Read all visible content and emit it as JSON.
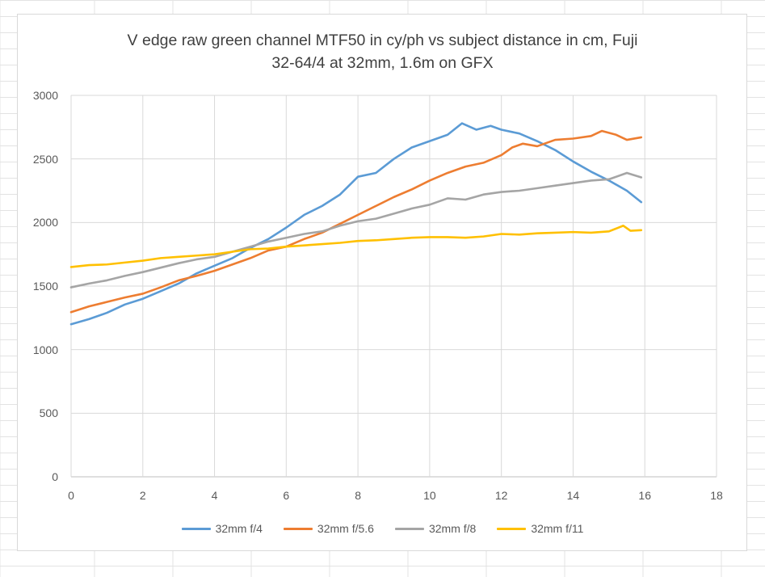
{
  "chart_data": {
    "type": "line",
    "title_line_1": "V edge raw green channel MTF50 in cy/ph vs subject distance in cm, Fuji",
    "title_line_2": "32-64/4 at 32mm, 1.6m on GFX",
    "xlabel": "",
    "ylabel": "",
    "xlim": [
      0,
      18
    ],
    "ylim": [
      0,
      3000
    ],
    "x_ticks": [
      0,
      2,
      4,
      6,
      8,
      10,
      12,
      14,
      16,
      18
    ],
    "y_ticks": [
      0,
      500,
      1000,
      1500,
      2000,
      2500,
      3000
    ],
    "grid": true,
    "legend_position": "bottom",
    "series": [
      {
        "name": "32mm f/4",
        "color": "#5b9bd5",
        "points": [
          [
            0,
            1200
          ],
          [
            0.5,
            1240
          ],
          [
            1,
            1290
          ],
          [
            1.5,
            1355
          ],
          [
            2,
            1400
          ],
          [
            2.5,
            1460
          ],
          [
            3,
            1520
          ],
          [
            3.5,
            1600
          ],
          [
            4,
            1660
          ],
          [
            4.5,
            1720
          ],
          [
            5,
            1800
          ],
          [
            5.5,
            1870
          ],
          [
            6,
            1960
          ],
          [
            6.5,
            2060
          ],
          [
            7,
            2130
          ],
          [
            7.5,
            2220
          ],
          [
            8,
            2360
          ],
          [
            8.5,
            2390
          ],
          [
            9,
            2500
          ],
          [
            9.5,
            2590
          ],
          [
            10,
            2640
          ],
          [
            10.5,
            2690
          ],
          [
            10.9,
            2780
          ],
          [
            11.3,
            2730
          ],
          [
            11.7,
            2760
          ],
          [
            12,
            2730
          ],
          [
            12.5,
            2700
          ],
          [
            13,
            2640
          ],
          [
            13.5,
            2570
          ],
          [
            14,
            2480
          ],
          [
            14.5,
            2400
          ],
          [
            15,
            2330
          ],
          [
            15.5,
            2250
          ],
          [
            15.9,
            2160
          ]
        ]
      },
      {
        "name": "32mm f/5.6",
        "color": "#ed7d31",
        "points": [
          [
            0,
            1295
          ],
          [
            0.5,
            1340
          ],
          [
            1,
            1375
          ],
          [
            1.5,
            1410
          ],
          [
            2,
            1440
          ],
          [
            2.5,
            1490
          ],
          [
            3,
            1545
          ],
          [
            3.5,
            1580
          ],
          [
            4,
            1620
          ],
          [
            4.5,
            1670
          ],
          [
            5,
            1720
          ],
          [
            5.5,
            1780
          ],
          [
            6,
            1810
          ],
          [
            6.5,
            1870
          ],
          [
            7,
            1920
          ],
          [
            7.5,
            1990
          ],
          [
            8,
            2060
          ],
          [
            8.5,
            2130
          ],
          [
            9,
            2200
          ],
          [
            9.5,
            2260
          ],
          [
            10,
            2330
          ],
          [
            10.5,
            2390
          ],
          [
            11,
            2440
          ],
          [
            11.5,
            2470
          ],
          [
            12,
            2530
          ],
          [
            12.3,
            2590
          ],
          [
            12.6,
            2620
          ],
          [
            13,
            2600
          ],
          [
            13.5,
            2650
          ],
          [
            14,
            2660
          ],
          [
            14.5,
            2680
          ],
          [
            14.8,
            2720
          ],
          [
            15.2,
            2690
          ],
          [
            15.5,
            2650
          ],
          [
            15.9,
            2670
          ]
        ]
      },
      {
        "name": "32mm f/8",
        "color": "#a5a5a5",
        "points": [
          [
            0,
            1490
          ],
          [
            0.5,
            1520
          ],
          [
            1,
            1545
          ],
          [
            1.5,
            1580
          ],
          [
            2,
            1610
          ],
          [
            2.5,
            1645
          ],
          [
            3,
            1680
          ],
          [
            3.5,
            1710
          ],
          [
            4,
            1730
          ],
          [
            4.5,
            1770
          ],
          [
            5,
            1810
          ],
          [
            5.5,
            1850
          ],
          [
            6,
            1880
          ],
          [
            6.5,
            1910
          ],
          [
            7,
            1930
          ],
          [
            7.5,
            1975
          ],
          [
            8,
            2010
          ],
          [
            8.5,
            2030
          ],
          [
            9,
            2070
          ],
          [
            9.5,
            2110
          ],
          [
            10,
            2140
          ],
          [
            10.5,
            2190
          ],
          [
            11,
            2180
          ],
          [
            11.5,
            2220
          ],
          [
            12,
            2240
          ],
          [
            12.5,
            2250
          ],
          [
            13,
            2270
          ],
          [
            13.5,
            2290
          ],
          [
            14,
            2310
          ],
          [
            14.5,
            2330
          ],
          [
            15,
            2340
          ],
          [
            15.5,
            2390
          ],
          [
            15.9,
            2355
          ]
        ]
      },
      {
        "name": "32mm f/11",
        "color": "#ffc000",
        "points": [
          [
            0,
            1650
          ],
          [
            0.5,
            1665
          ],
          [
            1,
            1670
          ],
          [
            1.5,
            1685
          ],
          [
            2,
            1700
          ],
          [
            2.5,
            1720
          ],
          [
            3,
            1730
          ],
          [
            3.5,
            1740
          ],
          [
            4,
            1750
          ],
          [
            4.5,
            1770
          ],
          [
            5,
            1790
          ],
          [
            5.5,
            1795
          ],
          [
            6,
            1810
          ],
          [
            6.5,
            1820
          ],
          [
            7,
            1830
          ],
          [
            7.5,
            1840
          ],
          [
            8,
            1855
          ],
          [
            8.5,
            1860
          ],
          [
            9,
            1870
          ],
          [
            9.5,
            1880
          ],
          [
            10,
            1885
          ],
          [
            10.5,
            1885
          ],
          [
            11,
            1880
          ],
          [
            11.5,
            1890
          ],
          [
            12,
            1910
          ],
          [
            12.5,
            1905
          ],
          [
            13,
            1915
          ],
          [
            13.5,
            1920
          ],
          [
            14,
            1925
          ],
          [
            14.5,
            1920
          ],
          [
            15,
            1930
          ],
          [
            15.4,
            1975
          ],
          [
            15.6,
            1935
          ],
          [
            15.9,
            1940
          ]
        ]
      }
    ]
  }
}
